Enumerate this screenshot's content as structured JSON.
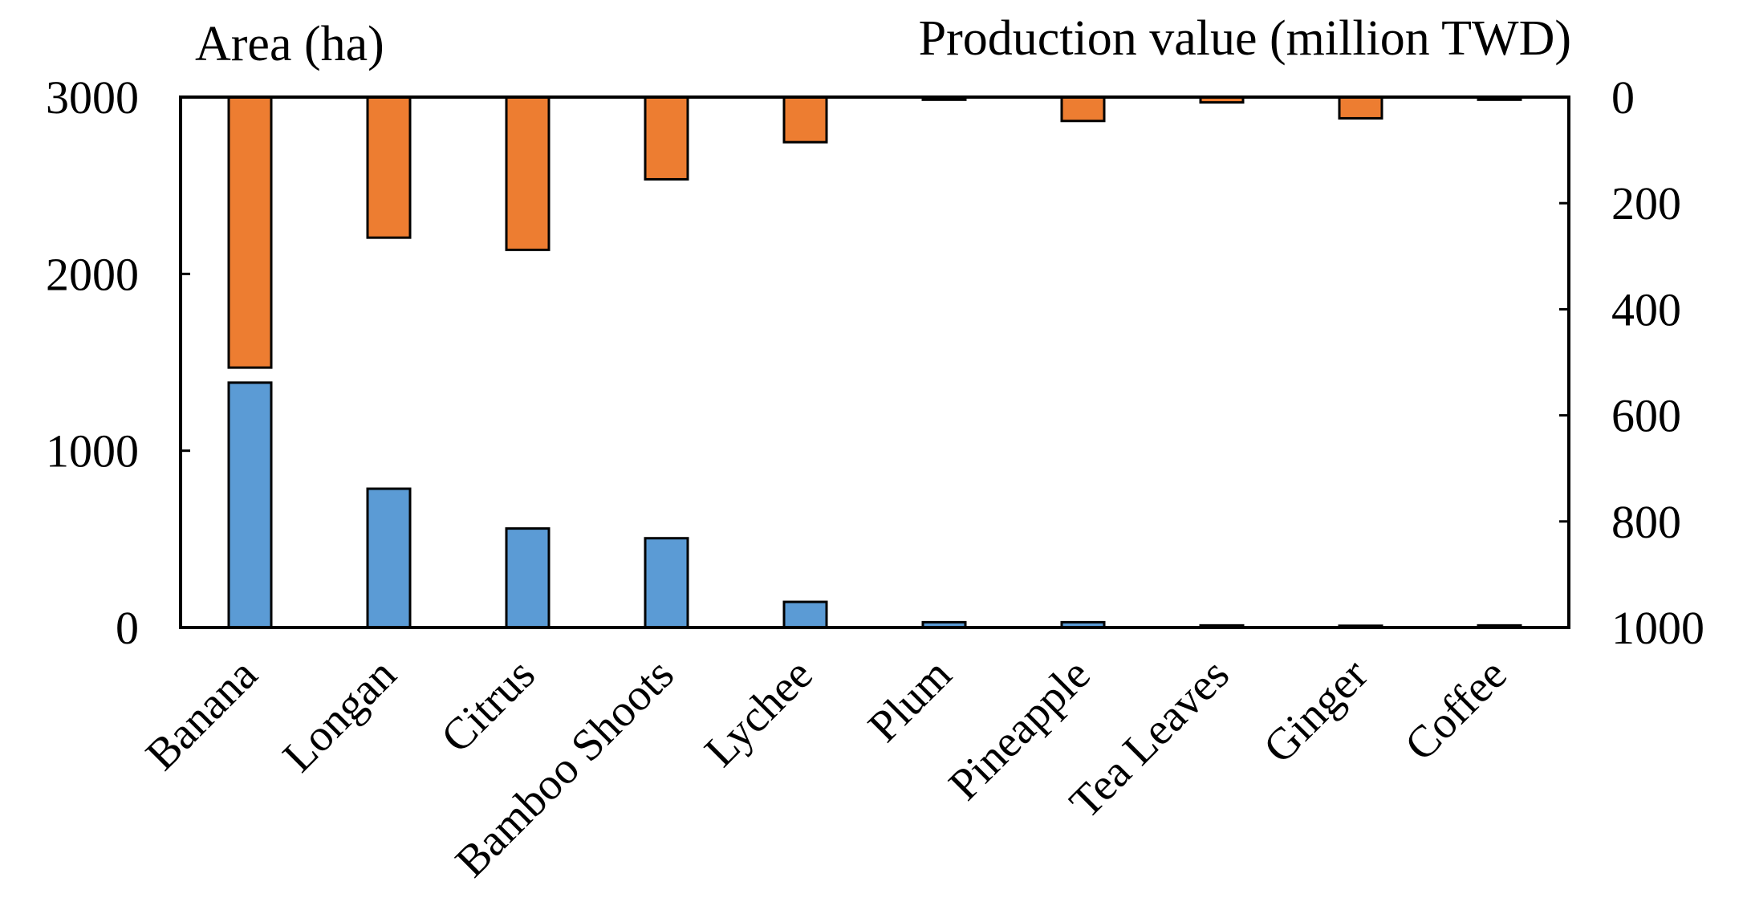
{
  "chart_data": {
    "type": "bar",
    "categories": [
      "Banana",
      "Longan",
      "Citrus",
      "Bamboo Shoots",
      "Lychee",
      "Plum",
      "Pineapple",
      "Tea Leaves",
      "Ginger",
      "Coffee"
    ],
    "series": [
      {
        "name": "Area (ha)",
        "axis": "left",
        "color": "#5b9bd5",
        "values": [
          1385,
          785,
          560,
          505,
          145,
          30,
          30,
          12,
          10,
          12
        ]
      },
      {
        "name": "Production value (million TWD)",
        "axis": "right",
        "color": "#ed7d31",
        "values": [
          510,
          265,
          288,
          155,
          85,
          5,
          45,
          10,
          40,
          5
        ]
      }
    ],
    "left_axis": {
      "title": "Area (ha)",
      "min": 0,
      "max": 3000,
      "ticks": [
        0,
        1000,
        2000,
        3000
      ]
    },
    "right_axis": {
      "title": "Production value (million TWD)",
      "min": 0,
      "max": 1000,
      "inverted": true,
      "ticks": [
        0,
        200,
        400,
        600,
        800,
        1000
      ]
    },
    "grid": false,
    "legend": "none"
  }
}
